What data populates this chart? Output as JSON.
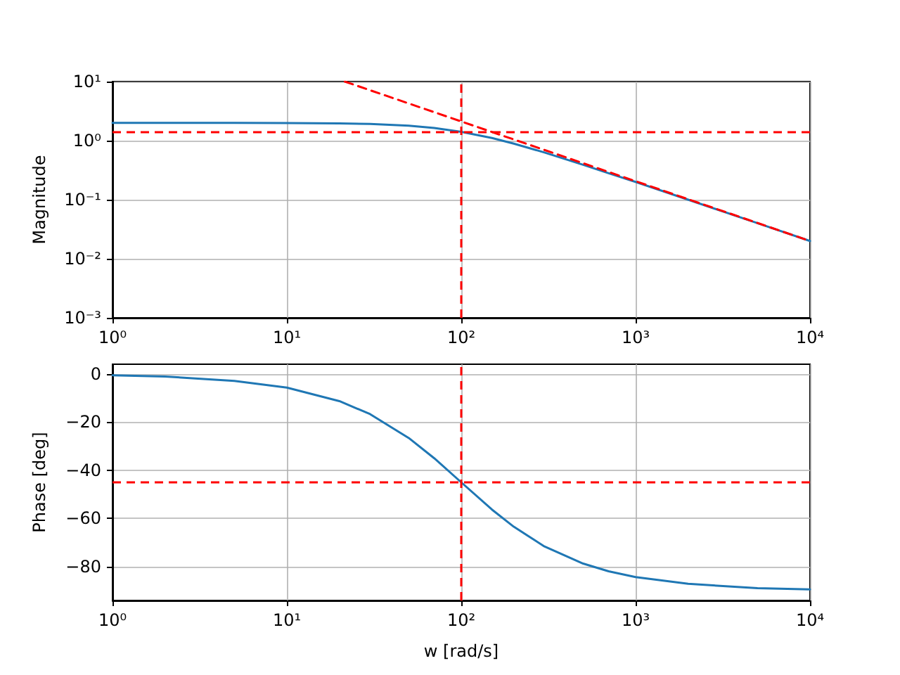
{
  "chart_data": [
    {
      "type": "line",
      "ylabel": "Magnitude",
      "log": "xy",
      "grid": true,
      "marker": "none",
      "xlim": [
        1,
        10000
      ],
      "ylim": [
        0.001,
        10
      ],
      "xticks": [
        {
          "value": 1,
          "label": "10⁰"
        },
        {
          "value": 10,
          "label": "10¹"
        },
        {
          "value": 100,
          "label": "10²"
        },
        {
          "value": 1000,
          "label": "10³"
        },
        {
          "value": 10000,
          "label": "10⁴"
        }
      ],
      "yticks": [
        {
          "value": 0.001,
          "label": "10⁻³"
        },
        {
          "value": 0.01,
          "label": "10⁻²"
        },
        {
          "value": 0.1,
          "label": "10⁻¹"
        },
        {
          "value": 1,
          "label": "10⁰"
        },
        {
          "value": 10,
          "label": "10¹"
        }
      ],
      "series": [
        {
          "color": "#1f77b4",
          "x": [
            1,
            2,
            5,
            10,
            20,
            30,
            50,
            70,
            100,
            150,
            200,
            300,
            500,
            700,
            1000,
            2000,
            5000,
            10000
          ],
          "values": [
            2.0,
            2.0,
            2.0,
            1.99,
            1.96,
            1.92,
            1.79,
            1.64,
            1.41,
            1.11,
            0.89,
            0.63,
            0.39,
            0.28,
            0.2,
            0.1,
            0.04,
            0.02
          ]
        },
        {
          "type": "line",
          "color": "#ff0000",
          "line_style": "dashed",
          "x": [
            21.5,
            10000
          ],
          "values": [
            10,
            0.02
          ]
        }
      ],
      "ref_lines": [
        {
          "axis": "x",
          "value": 100,
          "color": "#ff0000",
          "line_style": "dashed"
        },
        {
          "axis": "y",
          "value": 1.41,
          "color": "#ff0000",
          "line_style": "dashed"
        }
      ]
    },
    {
      "type": "line",
      "ylabel": "Phase [deg]",
      "xlabel": "w [rad/s]",
      "log": "x",
      "grid": true,
      "marker": "none",
      "xlim": [
        1,
        10000
      ],
      "ylim": [
        -94,
        4
      ],
      "xticks": [
        {
          "value": 1,
          "label": "10⁰"
        },
        {
          "value": 10,
          "label": "10¹"
        },
        {
          "value": 100,
          "label": "10²"
        },
        {
          "value": 1000,
          "label": "10³"
        },
        {
          "value": 10000,
          "label": "10⁴"
        }
      ],
      "yticks": [
        {
          "value": 0,
          "label": "0"
        },
        {
          "value": -20,
          "label": "−20"
        },
        {
          "value": -40,
          "label": "−40"
        },
        {
          "value": -60,
          "label": "−60"
        },
        {
          "value": -80,
          "label": "−80"
        }
      ],
      "series": [
        {
          "color": "#1f77b4",
          "x": [
            1,
            2,
            5,
            10,
            20,
            30,
            50,
            70,
            100,
            150,
            200,
            300,
            500,
            700,
            1000,
            2000,
            5000,
            10000
          ],
          "values": [
            -0.6,
            -1.1,
            -2.9,
            -5.7,
            -11.3,
            -16.7,
            -26.6,
            -35,
            -45,
            -56.3,
            -63.4,
            -71.6,
            -78.7,
            -81.9,
            -84.3,
            -87.1,
            -88.9,
            -89.4
          ]
        }
      ],
      "ref_lines": [
        {
          "axis": "x",
          "value": 100,
          "color": "#ff0000",
          "line_style": "dashed"
        },
        {
          "axis": "y",
          "value": -45,
          "color": "#ff0000",
          "line_style": "dashed"
        }
      ]
    }
  ]
}
